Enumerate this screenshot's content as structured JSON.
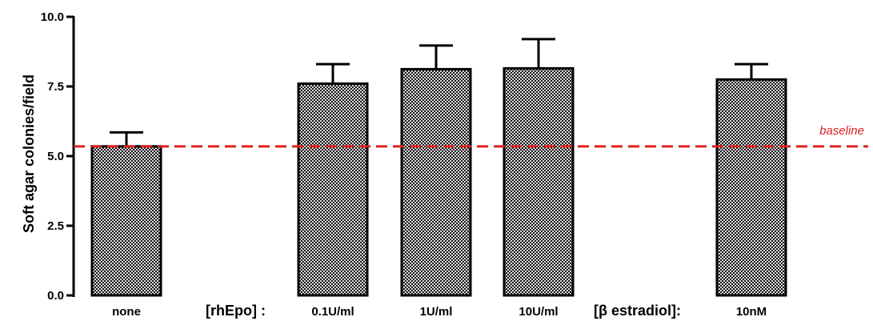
{
  "chart_data": {
    "type": "bar",
    "ylabel": "Soft agar colonies/field",
    "ylim": [
      0,
      10
    ],
    "yticks": [
      "0.0",
      "2.5",
      "5.0",
      "7.5",
      "10.0"
    ],
    "categories": [
      "none",
      "0.1U/ml",
      "1U/ml",
      "10U/ml",
      "10nM"
    ],
    "values": [
      5.35,
      7.6,
      8.12,
      8.15,
      7.75
    ],
    "errors": [
      0.5,
      0.7,
      0.85,
      1.05,
      0.55
    ],
    "group_labels": [
      "[rhEpo] :",
      "[β estradiol]:"
    ],
    "baseline": {
      "value": 5.35,
      "label": "baseline",
      "color": "#e02020"
    },
    "bar_fill": "crosshatch-dark",
    "grid": false
  }
}
